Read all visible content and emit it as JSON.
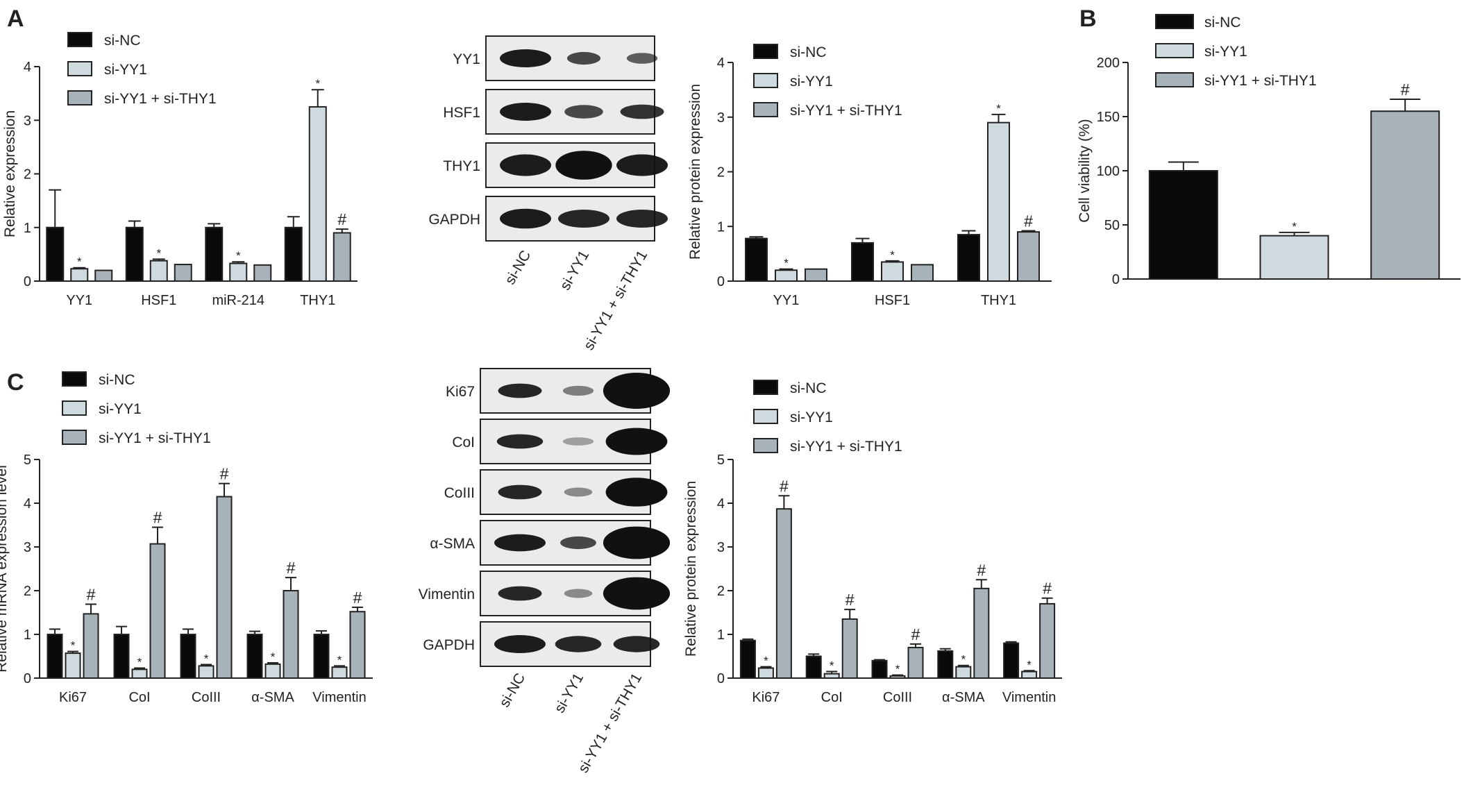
{
  "colors": {
    "si_nc": "#0a0a0a",
    "si_yy1": "#cfdadf",
    "si_yy1_thy1": "#a7b3b9",
    "axis": "#222222"
  },
  "panel_labels": [
    "A",
    "B",
    "C"
  ],
  "blots": {
    "A": {
      "rows": [
        "YY1",
        "HSF1",
        "THY1",
        "GAPDH"
      ],
      "lanes": [
        "si-NC",
        "si-YY1",
        "si-YY1 + si-THY1"
      ]
    },
    "C": {
      "rows": [
        "Ki67",
        "CoI",
        "CoIII",
        "α-SMA",
        "Vimentin",
        "GAPDH"
      ],
      "lanes": [
        "si-NC",
        "si-YY1",
        "si-YY1 + si-THY1"
      ]
    }
  },
  "chart_data": [
    {
      "id": "A-left",
      "type": "bar",
      "ylabel": "Relative expression",
      "ylim": [
        0,
        4
      ],
      "yticks": [
        0,
        1,
        2,
        3,
        4
      ],
      "categories": [
        "YY1",
        "HSF1",
        "miR-214",
        "THY1"
      ],
      "series": [
        {
          "name": "si-NC",
          "values": [
            1.0,
            1.0,
            1.0,
            1.0
          ],
          "errors": [
            0.7,
            0.12,
            0.07,
            0.2
          ],
          "marks": [
            "",
            "",
            "",
            ""
          ]
        },
        {
          "name": "si-YY1",
          "values": [
            0.23,
            0.38,
            0.33,
            3.25
          ],
          "errors": [
            0.02,
            0.03,
            0.03,
            0.32
          ],
          "marks": [
            "*",
            "*",
            "*",
            "*"
          ]
        },
        {
          "name": "si-YY1 + si-THY1",
          "values": [
            0.2,
            0.31,
            0.3,
            0.9
          ],
          "errors": [
            0.0,
            0.0,
            0.0,
            0.07
          ],
          "marks": [
            "",
            "",
            "",
            "#"
          ]
        }
      ]
    },
    {
      "id": "A-right",
      "type": "bar",
      "ylabel": "Relative protein expression",
      "ylim": [
        0,
        4
      ],
      "yticks": [
        0,
        1,
        2,
        3,
        4
      ],
      "categories": [
        "YY1",
        "HSF1",
        "THY1"
      ],
      "series": [
        {
          "name": "si-NC",
          "values": [
            0.78,
            0.7,
            0.85
          ],
          "errors": [
            0.03,
            0.08,
            0.07
          ],
          "marks": [
            "",
            "",
            ""
          ]
        },
        {
          "name": "si-YY1",
          "values": [
            0.2,
            0.35,
            2.9
          ],
          "errors": [
            0.02,
            0.02,
            0.15
          ],
          "marks": [
            "*",
            "*",
            "*"
          ]
        },
        {
          "name": "si-YY1 + si-THY1",
          "values": [
            0.22,
            0.3,
            0.9
          ],
          "errors": [
            0.0,
            0.0,
            0.02
          ],
          "marks": [
            "",
            "",
            "#"
          ]
        }
      ]
    },
    {
      "id": "B",
      "type": "bar",
      "ylabel": "Cell viability (%)",
      "ylim": [
        0,
        200
      ],
      "yticks": [
        0,
        50,
        100,
        150,
        200
      ],
      "categories": [
        "si-NC",
        "si-YY1",
        "si-YY1 + si-THY1"
      ],
      "series": [
        {
          "values": [
            100,
            40,
            155
          ],
          "errors": [
            8,
            3,
            11
          ],
          "marks": [
            "",
            "*",
            "#"
          ]
        }
      ]
    },
    {
      "id": "C-left",
      "type": "bar",
      "ylabel": "Relative mRNA expression level",
      "ylim": [
        0,
        5
      ],
      "yticks": [
        0,
        1,
        2,
        3,
        4,
        5
      ],
      "categories": [
        "Ki67",
        "CoI",
        "CoIII",
        "α-SMA",
        "Vimentin"
      ],
      "series": [
        {
          "name": "si-NC",
          "values": [
            1.0,
            1.0,
            1.0,
            1.0,
            1.0
          ],
          "errors": [
            0.12,
            0.18,
            0.12,
            0.07,
            0.08
          ],
          "marks": [
            "",
            "",
            "",
            "",
            ""
          ]
        },
        {
          "name": "si-YY1",
          "values": [
            0.57,
            0.2,
            0.28,
            0.32,
            0.25
          ],
          "errors": [
            0.04,
            0.03,
            0.03,
            0.03,
            0.03
          ],
          "marks": [
            "*",
            "*",
            "*",
            "*",
            "*"
          ]
        },
        {
          "name": "si-YY1 + si-THY1",
          "values": [
            1.47,
            3.07,
            4.15,
            2.0,
            1.52
          ],
          "errors": [
            0.22,
            0.38,
            0.3,
            0.3,
            0.1
          ],
          "marks": [
            "#",
            "#",
            "#",
            "#",
            "#"
          ]
        }
      ]
    },
    {
      "id": "C-right",
      "type": "bar",
      "ylabel": "Relative protein expression",
      "ylim": [
        0,
        5
      ],
      "yticks": [
        0,
        1,
        2,
        3,
        4,
        5
      ],
      "categories": [
        "Ki67",
        "CoI",
        "CoIII",
        "α-SMA",
        "Vimentin"
      ],
      "series": [
        {
          "name": "si-NC",
          "values": [
            0.86,
            0.5,
            0.4,
            0.62,
            0.8
          ],
          "errors": [
            0.03,
            0.05,
            0.02,
            0.05,
            0.03
          ],
          "marks": [
            "",
            "",
            "",
            "",
            ""
          ]
        },
        {
          "name": "si-YY1",
          "values": [
            0.23,
            0.1,
            0.05,
            0.26,
            0.15
          ],
          "errors": [
            0.03,
            0.05,
            0.02,
            0.03,
            0.02
          ],
          "marks": [
            "*",
            "*",
            "*",
            "*",
            "*"
          ]
        },
        {
          "name": "si-YY1 + si-THY1",
          "values": [
            3.87,
            1.35,
            0.7,
            2.05,
            1.7
          ],
          "errors": [
            0.3,
            0.22,
            0.08,
            0.2,
            0.13
          ],
          "marks": [
            "#",
            "#",
            "#",
            "#",
            "#"
          ]
        }
      ]
    }
  ]
}
